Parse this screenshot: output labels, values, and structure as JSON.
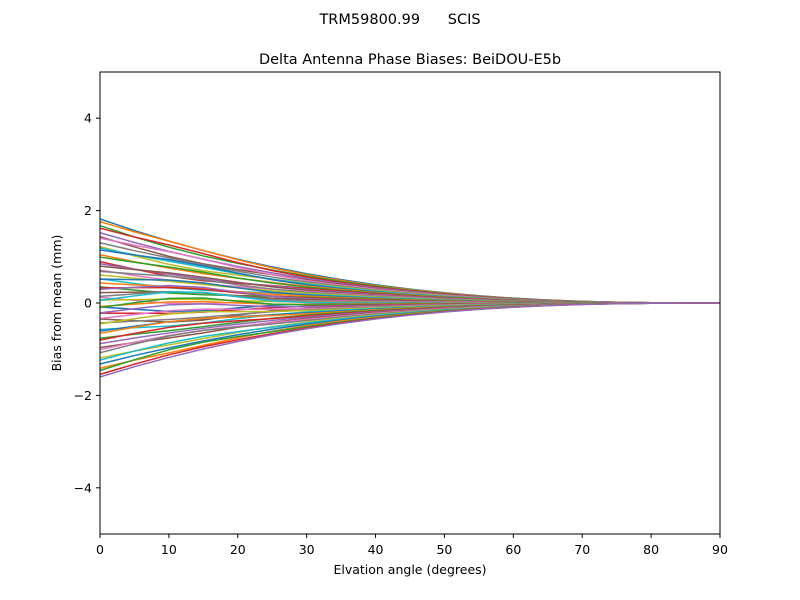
{
  "chart_data": {
    "type": "line",
    "suptitle": "TRM59800.99      SCIS",
    "title": "Delta Antenna Phase Biases: BeiDOU-E5b",
    "xlabel": "Elvation angle (degrees)",
    "ylabel": "Bias from mean (mm)",
    "xlim": [
      0,
      90
    ],
    "ylim": [
      -5,
      5
    ],
    "xticks": [
      0,
      10,
      20,
      30,
      40,
      50,
      60,
      70,
      80,
      90
    ],
    "yticks": [
      -4,
      -2,
      0,
      2,
      4
    ],
    "ytick_labels": [
      "−4",
      "−2",
      "0",
      "2",
      "4"
    ],
    "grid": false,
    "legend": "none",
    "x": [
      0,
      5,
      10,
      15,
      20,
      25,
      30,
      35,
      40,
      45,
      50,
      55,
      60,
      65,
      70,
      75,
      80,
      85,
      90
    ],
    "series_start_values": [
      1.82,
      1.75,
      1.68,
      1.6,
      1.52,
      1.45,
      1.38,
      1.3,
      1.24,
      1.18,
      1.12,
      1.05,
      0.98,
      0.92,
      0.85,
      0.78,
      0.72,
      0.66,
      0.6,
      0.54,
      0.48,
      0.42,
      0.36,
      0.3,
      0.25,
      0.2,
      0.15,
      0.1,
      0.05,
      0.0,
      -0.05,
      -0.1,
      -0.15,
      -0.2,
      -0.25,
      -0.3,
      -0.36,
      -0.42,
      -0.48,
      -0.55,
      -0.62,
      -0.68,
      -0.75,
      -0.82,
      -0.88,
      -0.95,
      -1.02,
      -1.1,
      -1.18,
      -1.25,
      -1.32,
      -1.4,
      -1.48,
      -1.55,
      -1.6
    ],
    "series_bump_values": [
      0.0,
      0.05,
      -0.03,
      0.08,
      0.0,
      -0.06,
      0.1,
      0.02,
      -0.08,
      0.04,
      0.12,
      -0.02,
      0.06,
      -0.1,
      0.0,
      0.08,
      -0.04,
      0.1,
      0.03,
      -0.07,
      0.15,
      0.05,
      -0.05,
      0.12,
      0.2,
      0.1,
      -0.12,
      0.18,
      0.05,
      0.25,
      -0.15,
      0.1,
      0.22,
      -0.08,
      0.15,
      -0.2,
      0.1,
      -0.05,
      0.12,
      -0.1,
      0.05,
      0.1,
      -0.05,
      0.08,
      0.0,
      -0.06,
      0.05,
      0.1,
      -0.04,
      0.06,
      0.0,
      -0.05,
      0.08,
      0.02,
      0.0
    ],
    "colors": [
      "#1f77b4",
      "#ff7f0e",
      "#2ca02c",
      "#d62728",
      "#9467bd",
      "#8c564b",
      "#e377c2",
      "#7f7f7f",
      "#bcbd22",
      "#17becf"
    ]
  }
}
